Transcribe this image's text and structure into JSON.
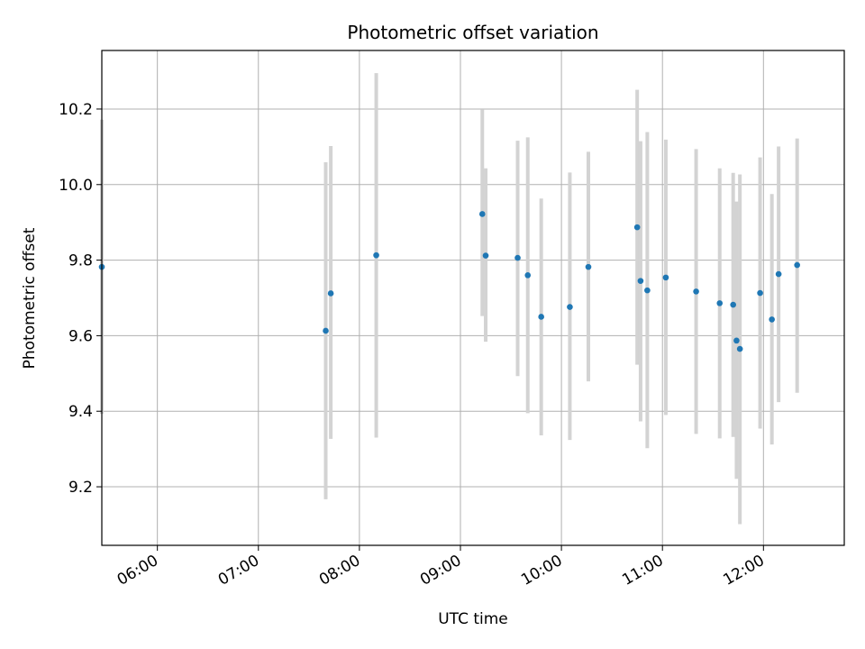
{
  "chart_data": {
    "type": "scatter",
    "title": "Photometric offset variation",
    "xlabel": "UTC time",
    "ylabel": "Photometric offset",
    "xlim": [
      "05:27",
      "12:48"
    ],
    "ylim": [
      9.045,
      10.355
    ],
    "xticks": [
      "06:00",
      "07:00",
      "08:00",
      "09:00",
      "10:00",
      "11:00",
      "12:00"
    ],
    "yticks": [
      "9.2",
      "9.4",
      "9.6",
      "9.8",
      "10.0",
      "10.2"
    ],
    "grid": true,
    "colors": {
      "marker": "#1f77b4",
      "errorbar": "#d3d3d3",
      "grid": "#b0b0b0"
    },
    "points": [
      {
        "x": "05:27",
        "y": 9.782,
        "ylow": 9.393,
        "yhigh": 10.172
      },
      {
        "x": "07:40",
        "y": 9.613,
        "ylow": 9.167,
        "yhigh": 10.059
      },
      {
        "x": "07:43",
        "y": 9.712,
        "ylow": 9.327,
        "yhigh": 10.102
      },
      {
        "x": "08:10",
        "y": 9.813,
        "ylow": 9.33,
        "yhigh": 10.295
      },
      {
        "x": "09:13",
        "y": 9.922,
        "ylow": 9.652,
        "yhigh": 10.198
      },
      {
        "x": "09:15",
        "y": 9.812,
        "ylow": 9.584,
        "yhigh": 10.043
      },
      {
        "x": "09:34",
        "y": 9.806,
        "ylow": 9.493,
        "yhigh": 10.116
      },
      {
        "x": "09:40",
        "y": 9.76,
        "ylow": 9.395,
        "yhigh": 10.125
      },
      {
        "x": "09:48",
        "y": 9.65,
        "ylow": 9.336,
        "yhigh": 9.963
      },
      {
        "x": "10:05",
        "y": 9.676,
        "ylow": 9.324,
        "yhigh": 10.032
      },
      {
        "x": "10:16",
        "y": 9.782,
        "ylow": 9.479,
        "yhigh": 10.087
      },
      {
        "x": "10:45",
        "y": 9.887,
        "ylow": 9.523,
        "yhigh": 10.251
      },
      {
        "x": "10:47",
        "y": 9.745,
        "ylow": 9.373,
        "yhigh": 10.115
      },
      {
        "x": "10:51",
        "y": 9.72,
        "ylow": 9.302,
        "yhigh": 10.139
      },
      {
        "x": "11:02",
        "y": 9.754,
        "ylow": 9.39,
        "yhigh": 10.119
      },
      {
        "x": "11:20",
        "y": 9.717,
        "ylow": 9.34,
        "yhigh": 10.094
      },
      {
        "x": "11:34",
        "y": 9.686,
        "ylow": 9.328,
        "yhigh": 10.043
      },
      {
        "x": "11:42",
        "y": 9.682,
        "ylow": 9.332,
        "yhigh": 10.031
      },
      {
        "x": "11:44",
        "y": 9.587,
        "ylow": 9.221,
        "yhigh": 9.955
      },
      {
        "x": "11:46",
        "y": 9.565,
        "ylow": 9.101,
        "yhigh": 10.027
      },
      {
        "x": "11:58",
        "y": 9.713,
        "ylow": 9.354,
        "yhigh": 10.072
      },
      {
        "x": "12:05",
        "y": 9.643,
        "ylow": 9.312,
        "yhigh": 9.975
      },
      {
        "x": "12:09",
        "y": 9.763,
        "ylow": 9.424,
        "yhigh": 10.101
      },
      {
        "x": "12:20",
        "y": 9.787,
        "ylow": 9.449,
        "yhigh": 10.122
      }
    ]
  }
}
